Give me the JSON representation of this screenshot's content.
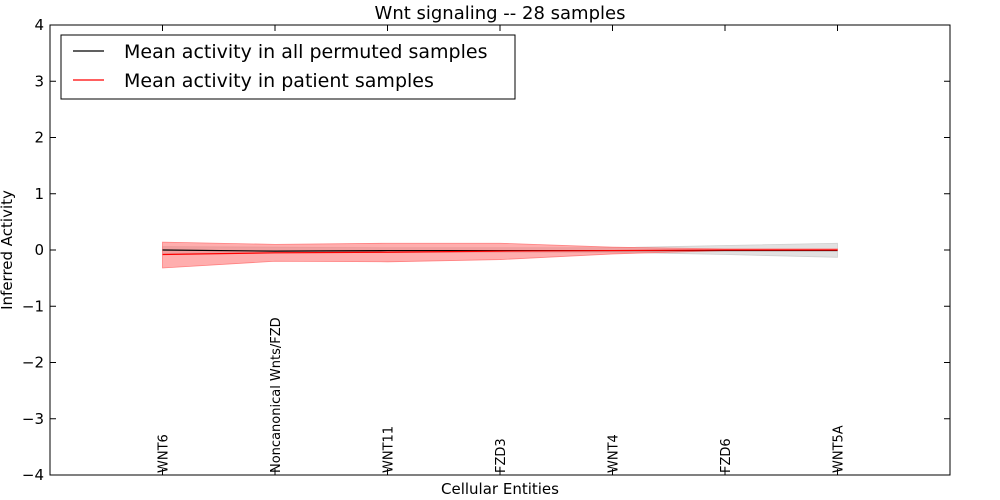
{
  "chart_data": {
    "type": "line",
    "title": "Wnt signaling -- 28 samples",
    "xlabel": "Cellular Entities",
    "ylabel": "Inferred Activity",
    "categories": [
      "WNT6",
      "Noncanonical Wnts/FZD",
      "WNT11",
      "FZD3",
      "WNT4",
      "FZD6",
      "WNT5A"
    ],
    "xlim": [
      -1,
      7
    ],
    "ylim": [
      -4,
      4
    ],
    "yticks": [
      -4,
      -3,
      -2,
      -1,
      0,
      1,
      2,
      3,
      4
    ],
    "ytick_labels": [
      "−4",
      "−3",
      "−2",
      "−1",
      "0",
      "1",
      "2",
      "3",
      "4"
    ],
    "grid": false,
    "legend_position": "top-left",
    "series": [
      {
        "name": "Mean activity in all permuted samples",
        "color": "#000000",
        "band_color": "#c8c8c8",
        "values": [
          0.0,
          -0.02,
          -0.01,
          -0.01,
          -0.01,
          -0.01,
          -0.01
        ],
        "lower": [
          -0.06,
          -0.05,
          -0.04,
          -0.04,
          -0.04,
          -0.08,
          -0.13
        ],
        "upper": [
          0.06,
          0.05,
          0.04,
          0.04,
          0.04,
          0.08,
          0.12
        ]
      },
      {
        "name": "Mean activity in patient samples",
        "color": "#ff0000",
        "band_color": "#ff6b6b",
        "values": [
          -0.08,
          -0.05,
          -0.04,
          -0.02,
          -0.01,
          0.0,
          0.0
        ],
        "lower": [
          -0.32,
          -0.2,
          -0.21,
          -0.17,
          -0.07,
          -0.01,
          -0.01
        ],
        "upper": [
          0.14,
          0.1,
          0.12,
          0.12,
          0.05,
          0.02,
          0.02
        ]
      }
    ]
  }
}
